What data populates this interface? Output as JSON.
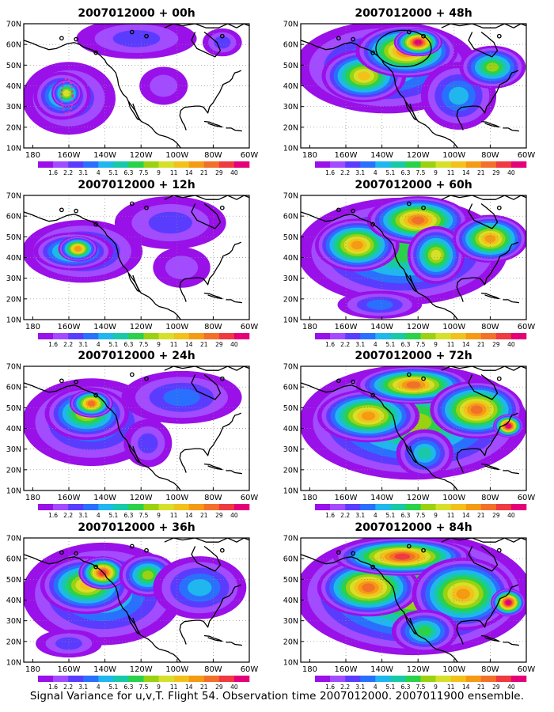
{
  "caption": "Signal Variance for u,v,T. Flight 54. Observation time 2007012000. 2007011900 ensemble.",
  "colorbar": {
    "labels": [
      "1.6",
      "2.2",
      "3.1",
      "4",
      "5.1",
      "6.3",
      "7.5",
      "9",
      "11",
      "14",
      "21",
      "29",
      "40"
    ],
    "colors": [
      "#9a10e8",
      "#a24bff",
      "#5a3cff",
      "#2a70ff",
      "#1fb7ee",
      "#18c9a8",
      "#2ad24a",
      "#9ad212",
      "#d6e02a",
      "#f3c21a",
      "#f59a14",
      "#f2702a",
      "#ee3a40",
      "#e5007a"
    ]
  },
  "axes": {
    "x_ticks": [
      "180",
      "160W",
      "140W",
      "120W",
      "100W",
      "80W",
      "60W"
    ],
    "y_ticks": [
      "70N",
      "60N",
      "50N",
      "40N",
      "30N",
      "20N",
      "10N"
    ]
  },
  "maps": [
    {
      "title": "2007012000 + 00h",
      "intensity": 0.2
    },
    {
      "title": "2007012000 + 48h",
      "intensity": 0.68
    },
    {
      "title": "2007012000 + 12h",
      "intensity": 0.35
    },
    {
      "title": "2007012000 + 60h",
      "intensity": 0.78
    },
    {
      "title": "2007012000 + 24h",
      "intensity": 0.5
    },
    {
      "title": "2007012000 + 72h",
      "intensity": 0.88
    },
    {
      "title": "2007012000 + 36h",
      "intensity": 0.6
    },
    {
      "title": "2007012000 + 84h",
      "intensity": 0.95
    }
  ]
}
